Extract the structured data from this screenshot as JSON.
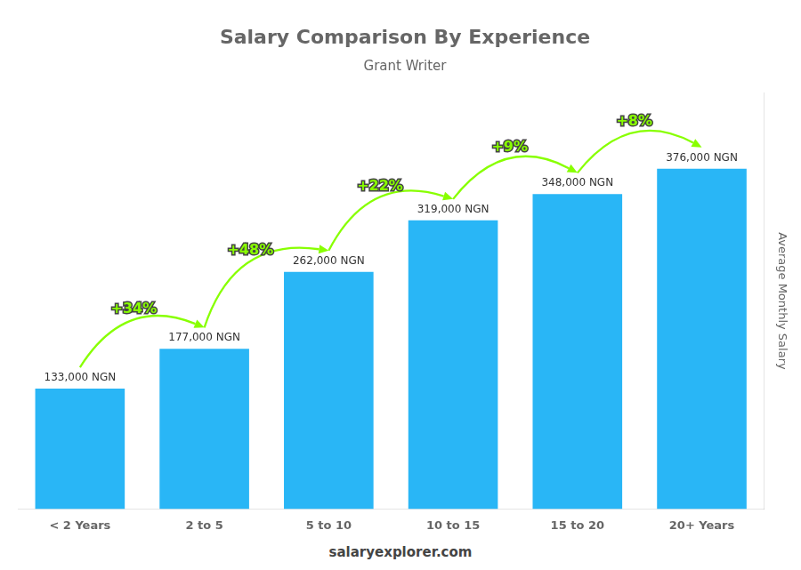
{
  "chart_data": {
    "type": "bar",
    "title": "Salary Comparison By Experience",
    "subtitle": "Grant Writer",
    "categories": [
      "< 2 Years",
      "2 to 5",
      "5 to 10",
      "10 to 15",
      "15 to 20",
      "20+ Years"
    ],
    "values": [
      133000,
      177000,
      262000,
      319000,
      348000,
      376000
    ],
    "value_labels": [
      "133,000 NGN",
      "177,000 NGN",
      "262,000 NGN",
      "319,000 NGN",
      "348,000 NGN",
      "376,000 NGN"
    ],
    "data_labels": true,
    "color": "#29B6F6",
    "ylabel": "Average Monthly Salary",
    "ylim": [
      0,
      460000
    ],
    "grid": false,
    "tick_labels": "x",
    "annotations": [
      {
        "text": "+34%",
        "color": "#88FF00"
      },
      {
        "text": "+48%",
        "color": "#88FF00"
      },
      {
        "text": "+22%",
        "color": "#88FF00"
      },
      {
        "text": "+9%",
        "color": "#88FF00"
      },
      {
        "text": "+8%",
        "color": "#88FF00"
      }
    ],
    "footer": "salaryexplorer.com"
  }
}
